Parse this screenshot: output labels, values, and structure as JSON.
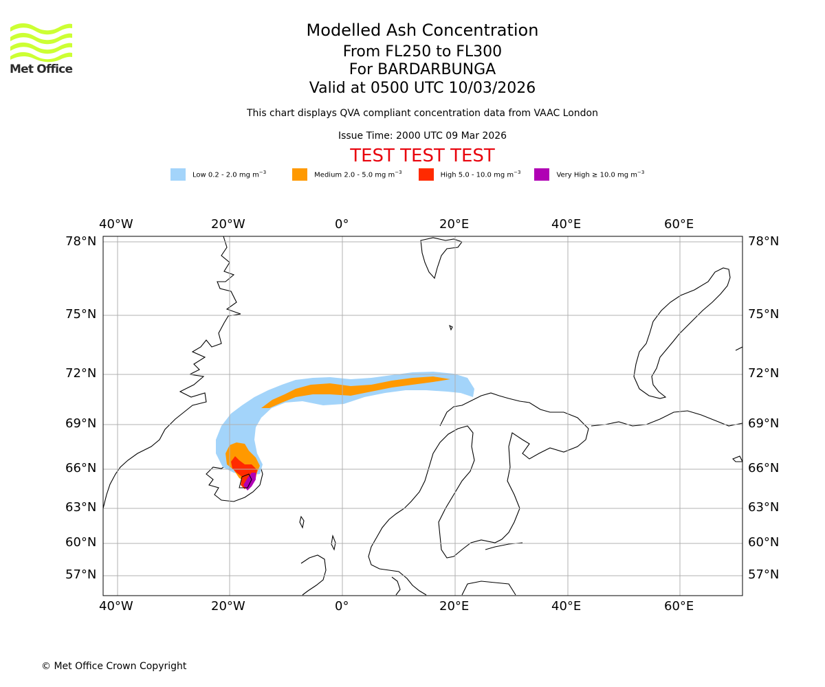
{
  "header": {
    "title": "Modelled Ash Concentration",
    "level_range": "From FL250 to FL300",
    "volcano": "For BARDARBUNGA",
    "valid_time": "Valid at 0500 UTC 10/03/2026",
    "description": "This chart displays QVA compliant concentration data from VAAC London",
    "issue_time": "Issue Time: 2000 UTC 09 Mar 2026",
    "test_banner": "TEST TEST TEST"
  },
  "logo": {
    "text": "Met Office",
    "color": "#ccff33"
  },
  "legend": [
    {
      "label": "Low 0.2 - 2.0 mg m",
      "unit_sup": "−3",
      "color": "#a3d4fa"
    },
    {
      "label": "Medium 2.0 - 5.0 mg m",
      "unit_sup": "−3",
      "color": "#ff9900"
    },
    {
      "label": "High 5.0 - 10.0 mg m",
      "unit_sup": "−3",
      "color": "#ff2a00"
    },
    {
      "label": "Very High  ≥  10.0 mg m",
      "unit_sup": "−3",
      "color": "#b000b4"
    }
  ],
  "map": {
    "lon_ticks": [
      "40°W",
      "20°W",
      "0°",
      "20°E",
      "40°E",
      "60°E"
    ],
    "lat_ticks": [
      "78°N",
      "75°N",
      "72°N",
      "69°N",
      "66°N",
      "63°N",
      "60°N",
      "57°N"
    ],
    "grid_color": "#b0b0b0"
  },
  "footer": {
    "copyright": "© Met Office Crown Copyright"
  }
}
